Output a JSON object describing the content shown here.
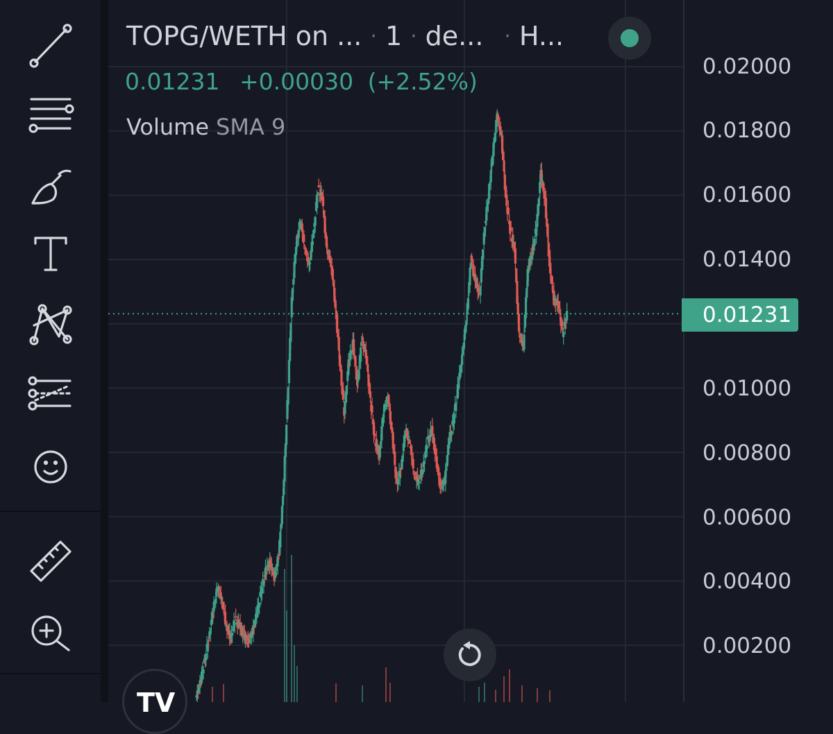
{
  "legend": {
    "symbol": "TOPG/WETH on ...",
    "interval": "1",
    "exchange": "de...",
    "extra": "H...",
    "last_price": "0.01231",
    "change": "+0.00030",
    "change_pct": "(+2.52%)",
    "volume_label": "Volume",
    "volume_sma": "SMA 9"
  },
  "price_axis": {
    "ticks": [
      "0.02000",
      "0.01800",
      "0.01600",
      "0.01400",
      "0.01000",
      "0.00800",
      "0.00600",
      "0.00400",
      "0.00200"
    ],
    "current_tag": "0.01231"
  },
  "toolbar": {
    "items": [
      "trend-line",
      "horizontal-lines",
      "brush",
      "text",
      "pattern",
      "forecast",
      "emoji",
      "ruler",
      "zoom-in"
    ]
  },
  "colors": {
    "up": "#3fa38a",
    "down": "#e05a55",
    "background": "#161923",
    "grid": "#242833"
  },
  "chart_data": {
    "type": "candlestick",
    "y_range": [
      0.0,
      0.0215
    ],
    "current_price": 0.01231,
    "price_path": [
      0.0003,
      0.0008,
      0.0015,
      0.0022,
      0.0031,
      0.0038,
      0.0034,
      0.0026,
      0.0022,
      0.0028,
      0.0026,
      0.0023,
      0.0021,
      0.0024,
      0.003,
      0.0037,
      0.0043,
      0.0046,
      0.0041,
      0.0048,
      0.0066,
      0.0095,
      0.0128,
      0.0145,
      0.0152,
      0.0143,
      0.0138,
      0.0149,
      0.0162,
      0.0159,
      0.0143,
      0.0139,
      0.0125,
      0.0108,
      0.0092,
      0.0108,
      0.0114,
      0.0101,
      0.0115,
      0.011,
      0.0096,
      0.0084,
      0.0079,
      0.0093,
      0.0097,
      0.0085,
      0.007,
      0.0075,
      0.0087,
      0.0083,
      0.0073,
      0.0071,
      0.0075,
      0.0083,
      0.0087,
      0.0078,
      0.0069,
      0.0071,
      0.0084,
      0.009,
      0.01,
      0.011,
      0.0122,
      0.014,
      0.0133,
      0.0129,
      0.0148,
      0.016,
      0.0173,
      0.0185,
      0.0178,
      0.0159,
      0.0149,
      0.0143,
      0.0117,
      0.0113,
      0.0137,
      0.0142,
      0.015,
      0.0167,
      0.0158,
      0.0138,
      0.0127,
      0.0126,
      0.0117,
      0.0123
    ]
  }
}
